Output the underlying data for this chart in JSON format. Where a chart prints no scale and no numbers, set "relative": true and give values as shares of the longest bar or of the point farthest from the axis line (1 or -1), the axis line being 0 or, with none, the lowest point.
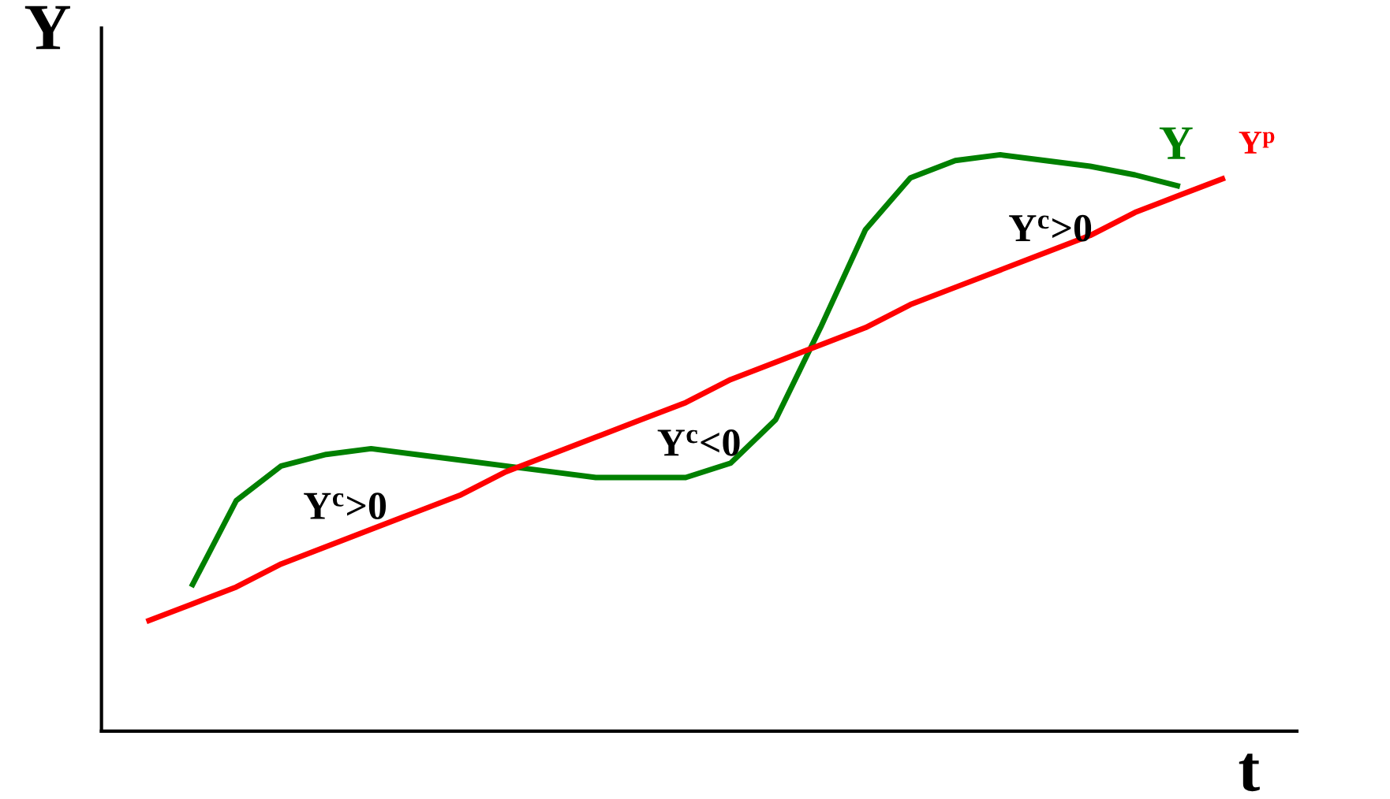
{
  "chart_data": {
    "type": "line",
    "relative": true,
    "xlabel": "t",
    "ylabel": "Y",
    "legend": false,
    "categories": [
      null,
      null,
      null,
      null,
      null,
      null,
      null,
      null,
      null,
      null,
      null,
      null,
      null,
      null,
      null,
      null,
      null,
      null,
      null,
      null,
      null,
      null,
      null,
      null,
      null
    ],
    "series": [
      {
        "name": "Y",
        "color": "#008000",
        "values": [
          null,
          0.25,
          0.4,
          0.46,
          0.48,
          0.49,
          0.48,
          0.47,
          0.46,
          0.45,
          0.44,
          0.44,
          0.44,
          0.465,
          0.54,
          0.7,
          0.87,
          0.96,
          0.99,
          1,
          0.99,
          0.98,
          0.965,
          0.945,
          null
        ]
      },
      {
        "name": "Y$^{p}$",
        "color": "#ff0000",
        "values": [
          0.19,
          0.22,
          0.25,
          0.29,
          0.32,
          0.35,
          0.38,
          0.41,
          0.45,
          0.48,
          0.51,
          0.54,
          0.57,
          0.61,
          0.64,
          0.67,
          0.7,
          0.74,
          0.77,
          0.8,
          0.83,
          0.86,
          0.9,
          0.93,
          0.96
        ]
      }
    ],
    "annotations": [
      "Y$^{c}$>0",
      "Y$^{c}$<0",
      "Y$^{c}$>0"
    ]
  }
}
